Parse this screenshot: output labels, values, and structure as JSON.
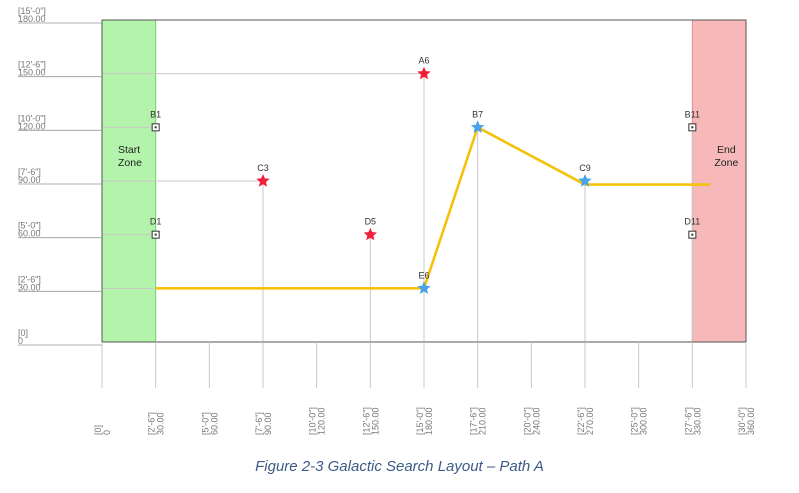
{
  "caption": "Figure 2-3 Galactic Search Layout – Path A",
  "zones": {
    "start": {
      "line1": "Start",
      "line2": "Zone",
      "color": "#b4f3ab",
      "border": "#6fd26a",
      "x_from": 0,
      "x_to": 30
    },
    "end": {
      "line1": "End",
      "line2": "Zone",
      "color": "#f6b8b8",
      "border": "#e08f8f",
      "x_from": 330,
      "x_to": 360
    }
  },
  "axes": {
    "x_range": [
      0,
      360
    ],
    "y_range": [
      0,
      180
    ],
    "x_ticks": [
      {
        "v": 0,
        "ft": "[0]",
        "num": "0"
      },
      {
        "v": 30,
        "ft": "[2'-6\"]",
        "num": "30.00"
      },
      {
        "v": 60,
        "ft": "[5'-0\"]",
        "num": "60.00"
      },
      {
        "v": 90,
        "ft": "[7'-6\"]",
        "num": "90.00"
      },
      {
        "v": 120,
        "ft": "[10'-0\"]",
        "num": "120.00"
      },
      {
        "v": 150,
        "ft": "[12'-6\"]",
        "num": "150.00"
      },
      {
        "v": 180,
        "ft": "[15'-0\"]",
        "num": "180.00"
      },
      {
        "v": 210,
        "ft": "[17'-6\"]",
        "num": "210.00"
      },
      {
        "v": 240,
        "ft": "[20'-0\"]",
        "num": "240.00"
      },
      {
        "v": 270,
        "ft": "[22'-6\"]",
        "num": "270.00"
      },
      {
        "v": 300,
        "ft": "[25'-0\"]",
        "num": "300.00"
      },
      {
        "v": 330,
        "ft": "[27'-6\"]",
        "num": "330.00"
      },
      {
        "v": 360,
        "ft": "[30'-0\"]",
        "num": "360.00"
      }
    ],
    "y_ticks": [
      {
        "v": 180,
        "ft": "[15'-0\"]",
        "num": "180.00"
      },
      {
        "v": 150,
        "ft": "[12'-6\"]",
        "num": "150.00"
      },
      {
        "v": 120,
        "ft": "[10'-0\"]",
        "num": "120.00"
      },
      {
        "v": 90,
        "ft": "[7'-6\"]",
        "num": "90.00"
      },
      {
        "v": 60,
        "ft": "[5'-0\"]",
        "num": "60.00"
      },
      {
        "v": 30,
        "ft": "[2'-6\"]",
        "num": "30.00"
      },
      {
        "v": 0,
        "ft": "[0]",
        "num": "0"
      }
    ]
  },
  "markers": [
    {
      "label": "B1",
      "x": 30,
      "y": 120,
      "kind": "square"
    },
    {
      "label": "D1",
      "x": 30,
      "y": 60,
      "kind": "square"
    },
    {
      "label": "C3",
      "x": 90,
      "y": 90,
      "kind": "star-red"
    },
    {
      "label": "A6",
      "x": 180,
      "y": 150,
      "kind": "star-red"
    },
    {
      "label": "D5",
      "x": 150,
      "y": 60,
      "kind": "star-red"
    },
    {
      "label": "E6",
      "x": 180,
      "y": 30,
      "kind": "star-blue"
    },
    {
      "label": "B7",
      "x": 210,
      "y": 120,
      "kind": "star-blue"
    },
    {
      "label": "C9",
      "x": 270,
      "y": 90,
      "kind": "star-blue"
    },
    {
      "label": "B11",
      "x": 330,
      "y": 120,
      "kind": "square"
    },
    {
      "label": "D11",
      "x": 330,
      "y": 60,
      "kind": "square"
    }
  ],
  "path": {
    "color": "#f5c20b",
    "points": [
      [
        30,
        30
      ],
      [
        180,
        30
      ],
      [
        210,
        120
      ],
      [
        270,
        88
      ],
      [
        340,
        88
      ]
    ]
  },
  "colors": {
    "star_red": "#f0203a",
    "star_blue": "#4aa3e8",
    "grid": "#c8c8c8",
    "frame": "#555555"
  }
}
